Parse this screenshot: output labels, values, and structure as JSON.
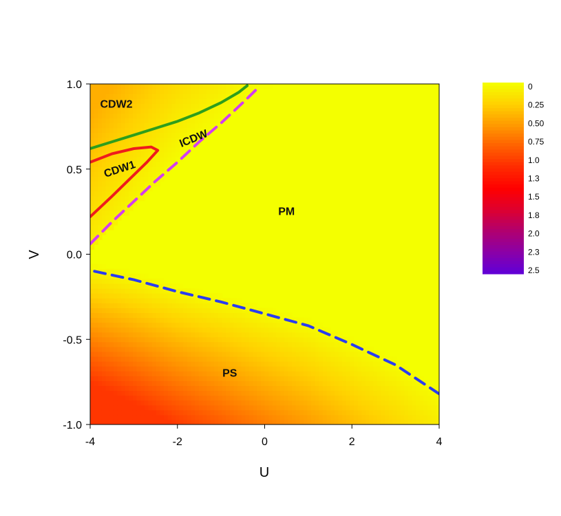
{
  "chart_data": {
    "type": "heatmap",
    "xlabel": "U",
    "ylabel": "V",
    "xlim": [
      -4,
      4
    ],
    "ylim": [
      -1,
      1
    ],
    "xticks": [
      "-4",
      "-2",
      "0",
      "2",
      "4"
    ],
    "yticks": [
      "1.0",
      "0.5",
      "0.0",
      "-0.5",
      "-1.0"
    ],
    "colorbar": {
      "labels": [
        "0",
        "0.25",
        "0.50",
        "0.75",
        "1.0",
        "1.3",
        "1.5",
        "1.8",
        "2.0",
        "2.3",
        "2.5"
      ],
      "range": [
        0,
        2.5
      ],
      "colors": [
        "#f4ff00",
        "#ffd200",
        "#ff9a00",
        "#ff6000",
        "#ff2a00",
        "#ff0000",
        "#dd0030",
        "#b00070",
        "#8a00a8",
        "#6000d8"
      ]
    },
    "region_labels": [
      {
        "text": "CDW2",
        "u": -3.4,
        "v": 0.86
      },
      {
        "text": "ICDW",
        "u": -1.6,
        "v": 0.66
      },
      {
        "text": "CDW1",
        "u": -3.3,
        "v": 0.48
      },
      {
        "text": "PM",
        "u": 0.5,
        "v": 0.23
      },
      {
        "text": "PS",
        "u": -0.8,
        "v": -0.72
      }
    ],
    "boundaries": [
      {
        "style": "solid",
        "color": "#2e9e1c",
        "points": [
          [
            -4,
            0.62
          ],
          [
            -3.5,
            0.66
          ],
          [
            -3,
            0.7
          ],
          [
            -2.5,
            0.74
          ],
          [
            -2,
            0.78
          ],
          [
            -1.5,
            0.83
          ],
          [
            -1,
            0.89
          ],
          [
            -0.6,
            0.95
          ],
          [
            -0.4,
            0.99
          ]
        ]
      },
      {
        "style": "solid",
        "color": "#ee1c1c",
        "points": [
          [
            -4,
            0.54
          ],
          [
            -3.5,
            0.59
          ],
          [
            -3,
            0.62
          ],
          [
            -2.6,
            0.63
          ],
          [
            -2.45,
            0.61
          ],
          [
            -2.7,
            0.54
          ],
          [
            -3.1,
            0.44
          ],
          [
            -3.5,
            0.34
          ],
          [
            -4,
            0.22
          ]
        ]
      },
      {
        "style": "dashed",
        "color": "#d33cf0",
        "points": [
          [
            -4,
            0.06
          ],
          [
            -3.5,
            0.19
          ],
          [
            -3,
            0.31
          ],
          [
            -2.5,
            0.43
          ],
          [
            -2,
            0.54
          ],
          [
            -1.5,
            0.66
          ],
          [
            -1,
            0.77
          ],
          [
            -0.5,
            0.89
          ],
          [
            -0.1,
            0.99
          ]
        ]
      },
      {
        "style": "dashed",
        "color": "#2a3cf0",
        "points": [
          [
            -3.9,
            -0.1
          ],
          [
            -3,
            -0.15
          ],
          [
            -2,
            -0.22
          ],
          [
            -1,
            -0.28
          ],
          [
            0,
            -0.35
          ],
          [
            1,
            -0.42
          ],
          [
            2,
            -0.53
          ],
          [
            3,
            -0.65
          ],
          [
            4,
            -0.82
          ]
        ]
      }
    ]
  }
}
